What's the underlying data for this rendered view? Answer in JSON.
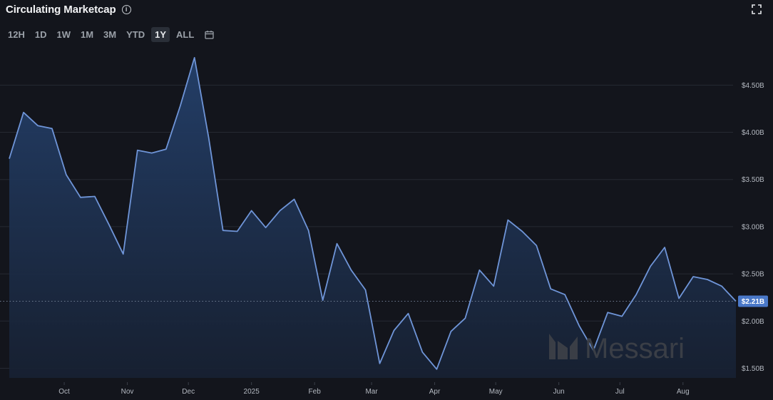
{
  "header": {
    "title": "Circulating Marketcap",
    "info_icon": "info-icon",
    "expand_icon": "expand-icon"
  },
  "range_buttons": [
    {
      "label": "12H",
      "active": false
    },
    {
      "label": "1D",
      "active": false
    },
    {
      "label": "1W",
      "active": false
    },
    {
      "label": "1M",
      "active": false
    },
    {
      "label": "3M",
      "active": false
    },
    {
      "label": "YTD",
      "active": false
    },
    {
      "label": "1Y",
      "active": true
    },
    {
      "label": "ALL",
      "active": false
    }
  ],
  "calendar_icon": "calendar-icon",
  "watermark": "Messari",
  "colors": {
    "line": "#6f95d8",
    "fill_top": "#24406b",
    "background": "#13151c",
    "grid": "#262a33",
    "price_badge": "#4a78c8"
  },
  "chart_data": {
    "type": "area",
    "title": "Circulating Marketcap",
    "xlabel": "",
    "ylabel": "",
    "x_ticks": [
      "Oct",
      "Nov",
      "Dec",
      "2025",
      "Feb",
      "Mar",
      "Apr",
      "May",
      "Jun",
      "Jul",
      "Aug"
    ],
    "y_ticks": [
      "$1.50B",
      "$2.00B",
      "$2.50B",
      "$3.00B",
      "$3.50B",
      "$4.00B",
      "$4.50B"
    ],
    "ylim": [
      1.39,
      4.85
    ],
    "y_unit": "$B",
    "grid": true,
    "current_value": 2.21,
    "current_label": "$2.21B",
    "series": [
      {
        "x": [
          "2024-09-04",
          "2024-09-11",
          "2024-09-18",
          "2024-09-25",
          "2024-10-02",
          "2024-10-09",
          "2024-10-16",
          "2024-10-23",
          "2024-10-30",
          "2024-11-06",
          "2024-11-13",
          "2024-11-20",
          "2024-11-27",
          "2024-12-04",
          "2024-12-11",
          "2024-12-18",
          "2024-12-25",
          "2025-01-01",
          "2025-01-08",
          "2025-01-15",
          "2025-01-22",
          "2025-01-29",
          "2025-02-05",
          "2025-02-12",
          "2025-02-19",
          "2025-02-26",
          "2025-03-05",
          "2025-03-12",
          "2025-03-19",
          "2025-03-26",
          "2025-04-02",
          "2025-04-09",
          "2025-04-16",
          "2025-04-23",
          "2025-04-30",
          "2025-05-07",
          "2025-05-14",
          "2025-05-21",
          "2025-05-28",
          "2025-06-04",
          "2025-06-11",
          "2025-06-18",
          "2025-06-25",
          "2025-07-02",
          "2025-07-09",
          "2025-07-16",
          "2025-07-23",
          "2025-07-30",
          "2025-08-06",
          "2025-08-13",
          "2025-08-20",
          "2025-08-27"
        ],
        "values": [
          3.72,
          4.21,
          4.07,
          4.04,
          3.55,
          3.31,
          3.32,
          3.02,
          2.71,
          3.81,
          3.78,
          3.82,
          4.28,
          4.79,
          3.94,
          2.96,
          2.95,
          3.17,
          2.99,
          3.17,
          3.29,
          2.96,
          2.22,
          2.82,
          2.54,
          2.33,
          1.55,
          1.9,
          2.08,
          1.67,
          1.49,
          1.89,
          2.03,
          2.54,
          2.37,
          3.07,
          2.95,
          2.8,
          2.34,
          2.28,
          1.95,
          1.69,
          2.09,
          2.05,
          2.28,
          2.58,
          2.78,
          2.24,
          2.47,
          2.44,
          2.37,
          2.21
        ]
      }
    ]
  }
}
